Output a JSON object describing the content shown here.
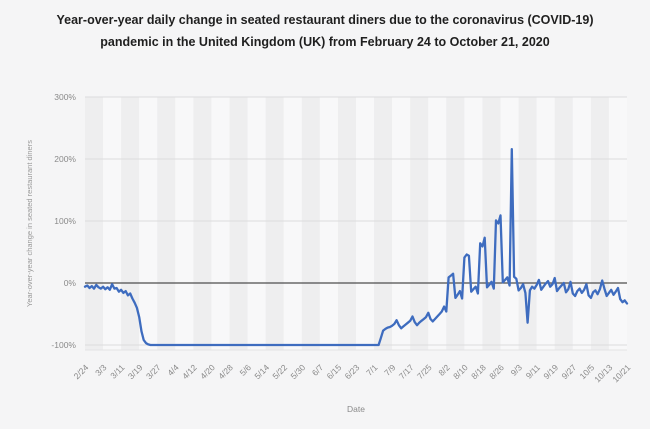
{
  "title": "Year-over-year daily change in seated restaurant diners due to the coronavirus (COVID-19) pandemic in the United Kingdom (UK) from February 24 to October 21, 2020",
  "colors": {
    "line": "#3e6cbf",
    "zero_line": "#4d4d4d",
    "gridline": "#dcdcdd",
    "stripe_dark": "#eeeeef",
    "stripe_light": "#f8f8f9",
    "tick_text": "#8a8a8a",
    "axis_title_text": "#9a9a9a",
    "background": "#f5f5f6",
    "plot_border": "#e3e3e4"
  },
  "chart_data": {
    "type": "line",
    "title": "Year-over-year daily change in seated restaurant diners due to the coronavirus (COVID-19) pandemic in the United Kingdom (UK) from February 24 to October 21, 2020",
    "xlabel": "Date",
    "ylabel": "Year-over-year change in seated restaurant diners",
    "ylim": [
      -100,
      300
    ],
    "grid": true,
    "legend": "none",
    "x_tick_step": 8,
    "x_tick_labels": [
      "2/24",
      "3/3",
      "3/11",
      "3/19",
      "3/27",
      "4/4",
      "4/12",
      "4/20",
      "4/28",
      "5/6",
      "5/14",
      "5/22",
      "5/30",
      "6/7",
      "6/15",
      "6/23",
      "7/1",
      "7/9",
      "7/17",
      "7/25",
      "8/2",
      "8/10",
      "8/18",
      "8/26",
      "9/3",
      "9/11",
      "9/19",
      "9/27",
      "10/5",
      "10/13",
      "10/21"
    ],
    "y_ticks": [
      {
        "label": "300%",
        "value": 300
      },
      {
        "label": "200%",
        "value": 200
      },
      {
        "label": "100%",
        "value": 100
      },
      {
        "label": "0%",
        "value": 0
      },
      {
        "label": "-100%",
        "value": -100
      }
    ],
    "unit": "percent",
    "start_date": "2/24/2020",
    "end_date": "10/21/2020",
    "values": [
      -6,
      -4,
      -8,
      -5,
      -9,
      -3,
      -7,
      -9,
      -6,
      -10,
      -7,
      -11,
      -2,
      -9,
      -8,
      -14,
      -11,
      -16,
      -13,
      -20,
      -17,
      -25,
      -32,
      -40,
      -55,
      -78,
      -92,
      -97,
      -99,
      -100,
      -100,
      -100,
      -100,
      -100,
      -100,
      -100,
      -100,
      -100,
      -100,
      -100,
      -100,
      -100,
      -100,
      -100,
      -100,
      -100,
      -100,
      -100,
      -100,
      -100,
      -100,
      -100,
      -100,
      -100,
      -100,
      -100,
      -100,
      -100,
      -100,
      -100,
      -100,
      -100,
      -100,
      -100,
      -100,
      -100,
      -100,
      -100,
      -100,
      -100,
      -100,
      -100,
      -100,
      -100,
      -100,
      -100,
      -100,
      -100,
      -100,
      -100,
      -100,
      -100,
      -100,
      -100,
      -100,
      -100,
      -100,
      -100,
      -100,
      -100,
      -100,
      -100,
      -100,
      -100,
      -100,
      -100,
      -100,
      -100,
      -100,
      -100,
      -100,
      -100,
      -100,
      -100,
      -100,
      -100,
      -100,
      -100,
      -100,
      -100,
      -100,
      -100,
      -100,
      -100,
      -100,
      -100,
      -100,
      -100,
      -100,
      -100,
      -100,
      -100,
      -100,
      -100,
      -100,
      -100,
      -100,
      -100,
      -100,
      -100,
      -100,
      -89,
      -77,
      -74,
      -72,
      -71,
      -69,
      -66,
      -60,
      -68,
      -73,
      -70,
      -67,
      -64,
      -61,
      -54,
      -63,
      -68,
      -64,
      -61,
      -58,
      -55,
      -48,
      -58,
      -62,
      -58,
      -54,
      -50,
      -46,
      -38,
      -46,
      9,
      12,
      15,
      -24,
      -19,
      -13,
      -25,
      41,
      46,
      44,
      -14,
      -10,
      -6,
      -17,
      64,
      59,
      73,
      -7,
      -3,
      2,
      -9,
      101,
      96,
      109,
      1,
      5,
      9,
      -4,
      216,
      10,
      7,
      -12,
      -8,
      -2,
      -16,
      -64,
      -12,
      -6,
      -9,
      -3,
      5,
      -11,
      -6,
      -1,
      3,
      -6,
      -2,
      8,
      -13,
      -8,
      -4,
      0,
      -15,
      -10,
      2,
      -17,
      -21,
      -13,
      -9,
      -16,
      -11,
      -2,
      -20,
      -24,
      -15,
      -12,
      -18,
      -10,
      4,
      -9,
      -21,
      -16,
      -11,
      -19,
      -14,
      -8,
      -26,
      -31,
      -28,
      -33
    ]
  }
}
